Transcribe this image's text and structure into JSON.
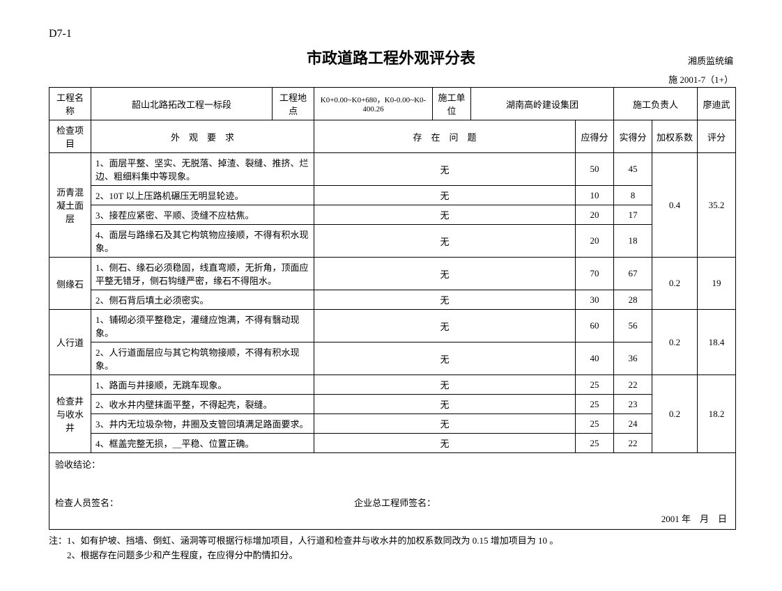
{
  "doc_code": "D7-1",
  "main_title": "市政道路工程外观评分表",
  "source_tag": "湘质监统编",
  "sub_code": "施 2001-7（1+）",
  "header": {
    "labels": {
      "project_name": "工程名称",
      "project_location": "工程地点",
      "construction_unit": "施工单位",
      "construction_leader": "施工负责人",
      "inspection_item": "检查项目",
      "appearance_req": "外　观　要　求",
      "existing_issue": "存　在　问　题",
      "should_score": "应得分",
      "actual_score": "实得分",
      "weight": "加权系数",
      "rating": "评分"
    },
    "values": {
      "project_name": "韶山北路拓改工程一标段",
      "project_location": "K0+0.00~K0+680，K0-0.00~K0-400.26",
      "construction_unit": "湖南高岭建设集团",
      "construction_leader": "廖迪武"
    }
  },
  "groups": [
    {
      "name": "沥青混凝土面层",
      "weight": "0.4",
      "rating": "35.2",
      "rows": [
        {
          "req": "1、面层平整、坚实、无脱落、掉渣、裂缝、推挤、烂边、粗细料集中等现象。",
          "issue": "无",
          "should": "50",
          "actual": "45"
        },
        {
          "req": "2、10T 以上压路机碾压无明显轮迹。",
          "issue": "无",
          "should": "10",
          "actual": "8"
        },
        {
          "req": "3、接茬应紧密、平顺、烫缝不应枯焦。",
          "issue": "无",
          "should": "20",
          "actual": "17"
        },
        {
          "req": "4、面层与路缘石及其它构筑物应接顺，不得有积水现象。",
          "issue": "无",
          "should": "20",
          "actual": "18"
        }
      ]
    },
    {
      "name": "侧缘石",
      "weight": "0.2",
      "rating": "19",
      "rows": [
        {
          "req": "1、侧石、缘石必须稳固，线直弯顺，无折角，顶面应平整无错牙，侧石钩缝严密，缘石不得阻水。",
          "issue": "无",
          "should": "70",
          "actual": "67"
        },
        {
          "req": "2、侧石背后填土必须密实。",
          "issue": "无",
          "should": "30",
          "actual": "28"
        }
      ]
    },
    {
      "name": "人行道",
      "weight": "0.2",
      "rating": "18.4",
      "rows": [
        {
          "req": "1、铺砌必须平整稳定，灌缝应饱满，不得有翳动现象。",
          "issue": "无",
          "should": "60",
          "actual": "56"
        },
        {
          "req": "2、人行道面层应与其它构筑物接顺，不得有积水现象。",
          "issue": "无",
          "should": "40",
          "actual": "36"
        }
      ]
    },
    {
      "name": "检查井与收水井",
      "weight": "0.2",
      "rating": "18.2",
      "rows": [
        {
          "req": "1、路面与井接顺，无跳车现象。",
          "issue": "无",
          "should": "25",
          "actual": "22"
        },
        {
          "req": "2、收水井内壁抹面平整，不得起壳，裂缝。",
          "issue": "无",
          "should": "25",
          "actual": "23"
        },
        {
          "req": "3、井内无垃圾杂物，井圈及支管回填满足路面要求。",
          "issue": "无",
          "should": "25",
          "actual": "24"
        },
        {
          "req": "4、框盖完整无损，＿平稳、位置正确。",
          "issue": "无",
          "should": "25",
          "actual": "22"
        }
      ]
    }
  ],
  "footer": {
    "conclusion_label": "验收结论：",
    "inspector_sign": "检查人员签名：",
    "engineer_sign": "企业总工程师签名：",
    "date_text": "2001 年　月　日"
  },
  "notes": {
    "line1": "注：1、如有护坡、挡墙、倒虹、涵洞等可根据行标增加项目，人行道和检查井与收水井的加权系数同改为 0.15 增加项目为 10 。",
    "line2": "　　2、根据存在问题多少和产生程度，在应得分中酌情扣分。"
  }
}
